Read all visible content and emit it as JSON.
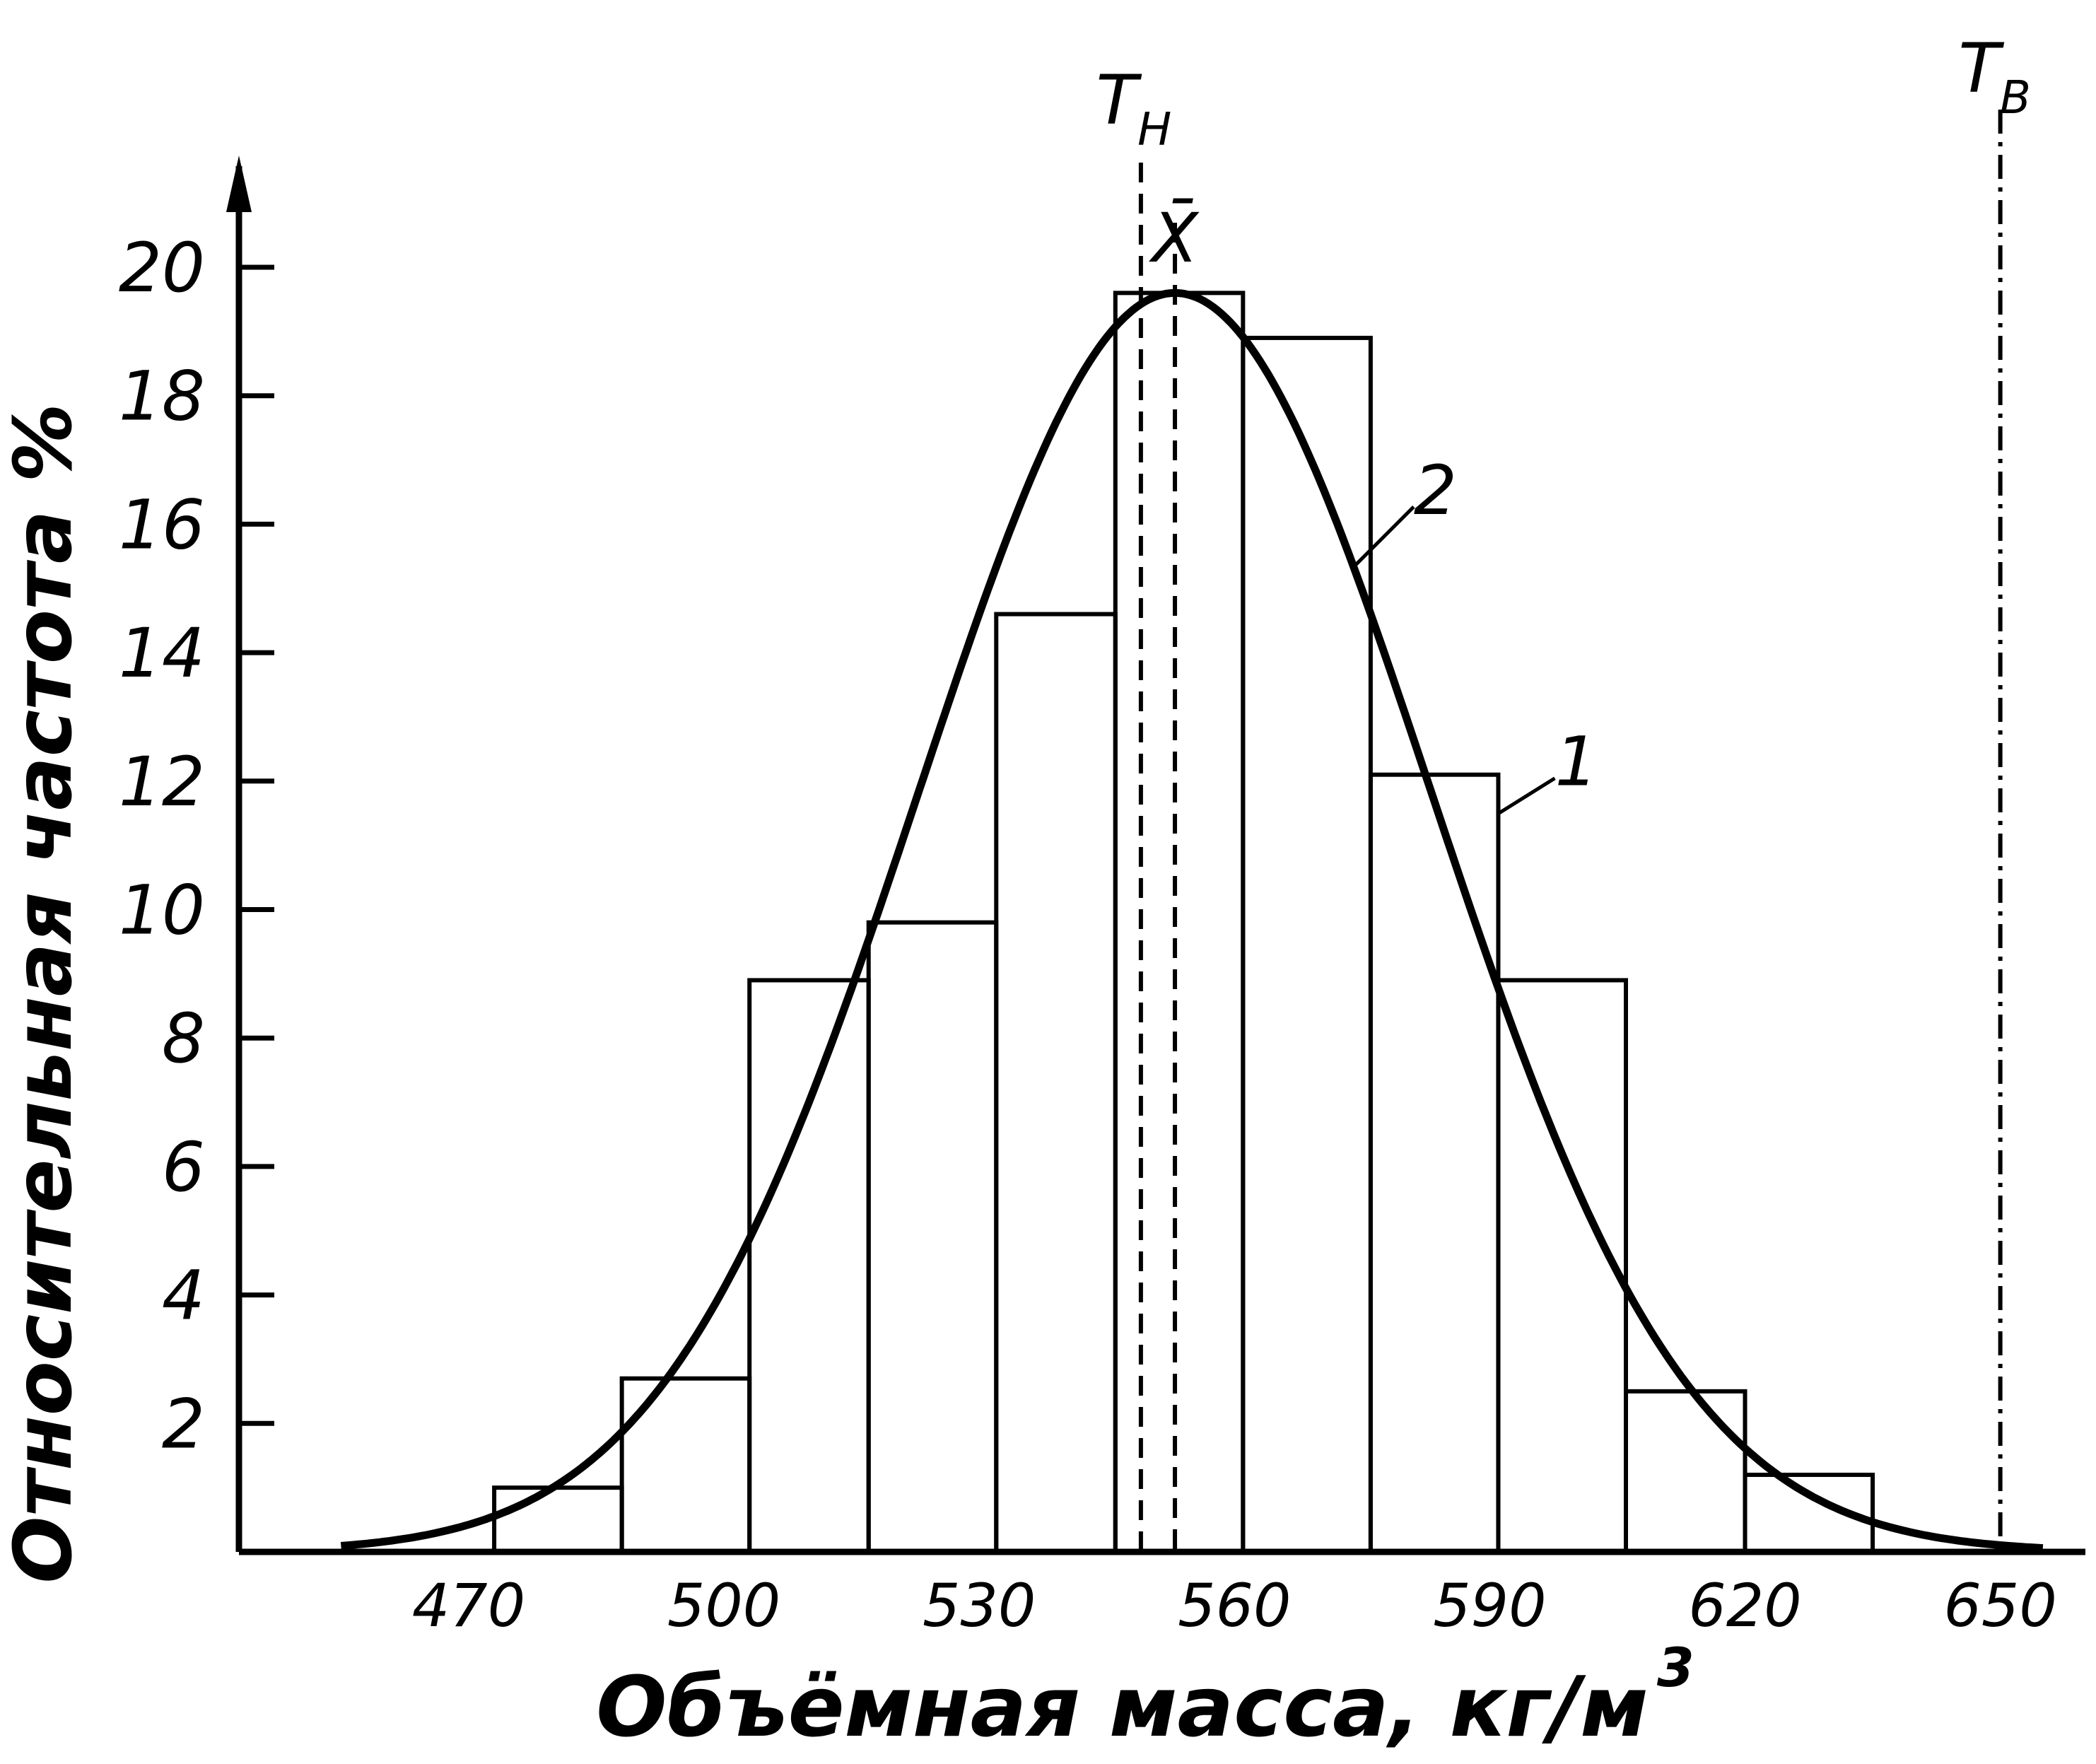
{
  "chart_data": {
    "type": "bar",
    "xlabel": "Объёмная масса, кг/м",
    "xlabel_sup": "3",
    "ylabel": "Относительная частота %",
    "x_ticks": [
      "470",
      "500",
      "530",
      "560",
      "590",
      "620",
      "650"
    ],
    "y_ticks": [
      "2",
      "4",
      "6",
      "8",
      "10",
      "12",
      "14",
      "16",
      "18",
      "20"
    ],
    "xlim": [
      443,
      660
    ],
    "ylim": [
      0,
      20
    ],
    "histogram": {
      "label": "1",
      "bin_edges": [
        473,
        488,
        503,
        517,
        532,
        546,
        561,
        576,
        591,
        606,
        620,
        635
      ],
      "values": [
        1.0,
        2.7,
        8.9,
        9.8,
        14.6,
        19.6,
        18.9,
        12.1,
        8.9,
        2.5,
        1.2
      ]
    },
    "curve": {
      "label": "2",
      "type": "normal",
      "mean": 553,
      "peak": 19.6
    },
    "markers": [
      {
        "label": "T",
        "sub": "H",
        "x": 549
      },
      {
        "label": "X̄",
        "x": 553
      },
      {
        "label": "T",
        "sub": "B",
        "x": 650
      }
    ]
  }
}
